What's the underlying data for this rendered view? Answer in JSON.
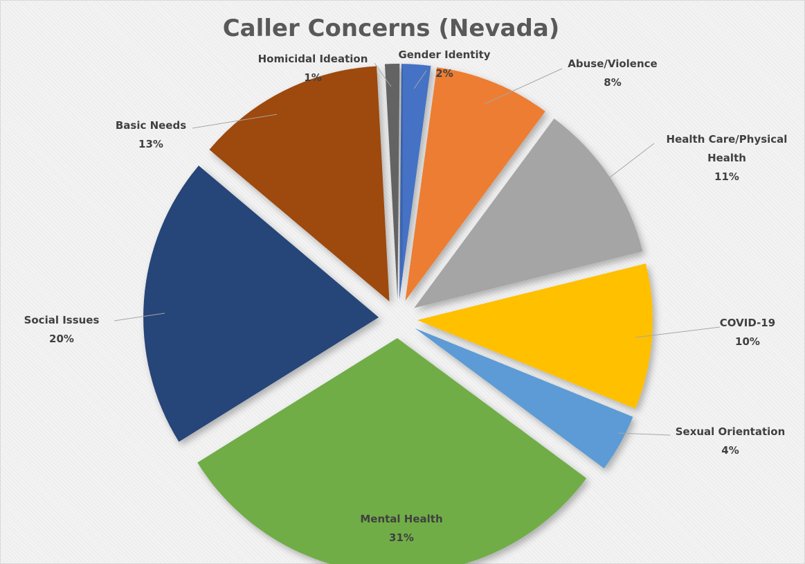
{
  "chart_data": {
    "type": "pie",
    "title": "Caller Concerns (Nevada)",
    "exploded": true,
    "slices": [
      {
        "label": "Gender Identity",
        "value": 2,
        "value_label": "2%",
        "color": "#4472c4"
      },
      {
        "label": "Abuse/Violence",
        "value": 8,
        "value_label": "8%",
        "color": "#ed7d31"
      },
      {
        "label": "Health Care/Physical Health",
        "label_lines": [
          "Health Care/Physical",
          "Health"
        ],
        "value": 11,
        "value_label": "11%",
        "color": "#a5a5a5"
      },
      {
        "label": "COVID-19",
        "value": 10,
        "value_label": "10%",
        "color": "#ffc000"
      },
      {
        "label": "Sexual Orientation",
        "value": 4,
        "value_label": "4%",
        "color": "#5b9bd5"
      },
      {
        "label": "Mental Health",
        "value": 31,
        "value_label": "31%",
        "color": "#70ad47"
      },
      {
        "label": "Social Issues",
        "value": 20,
        "value_label": "20%",
        "color": "#264478"
      },
      {
        "label": "Basic Needs",
        "value": 13,
        "value_label": "13%",
        "color": "#9e480e"
      },
      {
        "label": "Homicidal Ideation",
        "value": 1,
        "value_label": "1%",
        "color": "#636363"
      }
    ]
  }
}
